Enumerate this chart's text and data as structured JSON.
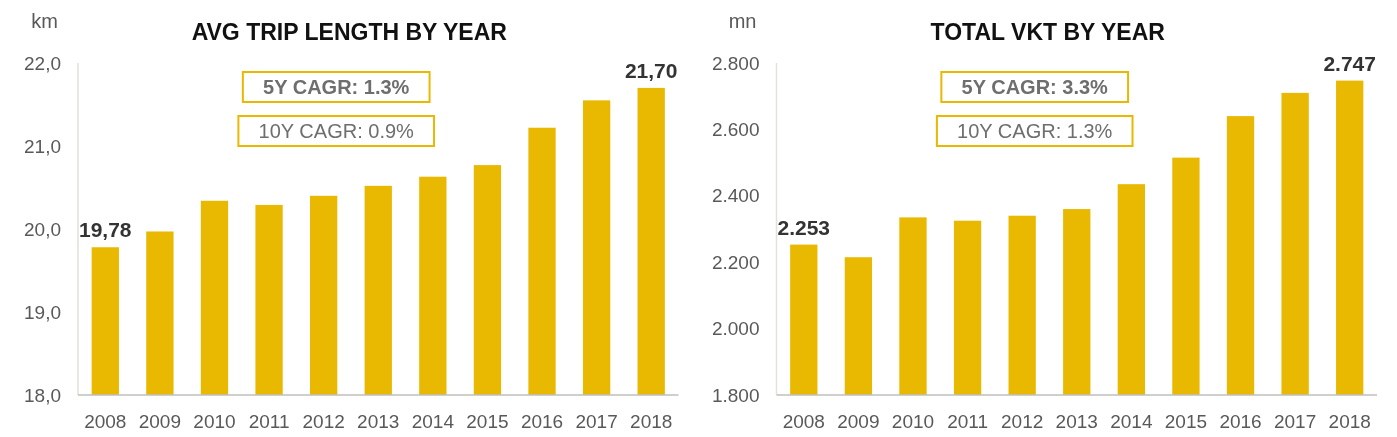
{
  "chart_data": [
    {
      "type": "bar",
      "title": "AVG TRIP LENGTH BY YEAR",
      "ylabel": "km",
      "categories": [
        "2008",
        "2009",
        "2010",
        "2011",
        "2012",
        "2013",
        "2014",
        "2015",
        "2016",
        "2017",
        "2018"
      ],
      "values": [
        19.78,
        19.97,
        20.34,
        20.29,
        20.4,
        20.52,
        20.63,
        20.77,
        21.22,
        21.55,
        21.7
      ],
      "color": "#e9b800",
      "ylim": [
        18,
        22
      ],
      "yticks": [
        {
          "value": 18,
          "label": "18,0"
        },
        {
          "value": 19,
          "label": "19,0"
        },
        {
          "value": 20,
          "label": "20,0"
        },
        {
          "value": 21,
          "label": "21,0"
        },
        {
          "value": 22,
          "label": "22,0"
        }
      ],
      "value_labels": [
        "19,78",
        null,
        null,
        null,
        null,
        null,
        null,
        null,
        null,
        null,
        "21,70"
      ],
      "annotations": [
        "5Y CAGR: 1.3%",
        "10Y CAGR: 0.9%"
      ]
    },
    {
      "type": "bar",
      "title": "TOTAL VKT BY YEAR",
      "ylabel": "mn",
      "categories": [
        "2008",
        "2009",
        "2010",
        "2011",
        "2012",
        "2013",
        "2014",
        "2015",
        "2016",
        "2017",
        "2018"
      ],
      "values": [
        2253,
        2215,
        2335,
        2325,
        2340,
        2360,
        2435,
        2515,
        2640,
        2710,
        2747
      ],
      "color": "#e9b800",
      "ylim": [
        1800,
        2800
      ],
      "yticks": [
        {
          "value": 1800,
          "label": "1.800"
        },
        {
          "value": 2000,
          "label": "2.000"
        },
        {
          "value": 2200,
          "label": "2.200"
        },
        {
          "value": 2400,
          "label": "2.400"
        },
        {
          "value": 2600,
          "label": "2.600"
        },
        {
          "value": 2800,
          "label": "2.800"
        }
      ],
      "value_labels": [
        "2.253",
        null,
        null,
        null,
        null,
        null,
        null,
        null,
        null,
        null,
        "2.747"
      ],
      "annotations": [
        "5Y CAGR: 3.3%",
        "10Y CAGR: 1.3%"
      ]
    }
  ]
}
